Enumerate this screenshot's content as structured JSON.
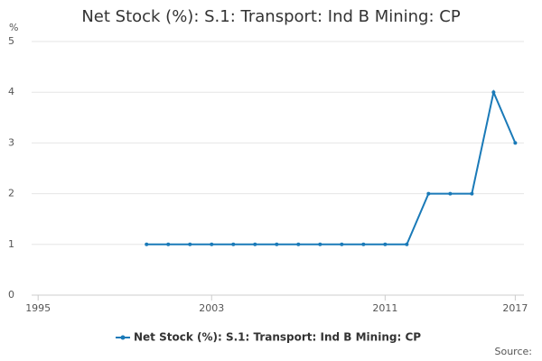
{
  "chart_data": {
    "type": "line",
    "title": "Net Stock (%): S.1: Transport: Ind B Mining: CP",
    "y_unit": "%",
    "source": "Source:",
    "x": [
      2000,
      2001,
      2002,
      2003,
      2004,
      2005,
      2006,
      2007,
      2008,
      2009,
      2010,
      2011,
      2012,
      2013,
      2014,
      2015,
      2016,
      2017
    ],
    "series": [
      {
        "name": "Net Stock (%): S.1: Transport: Ind B Mining: CP",
        "color": "#1a7ab8",
        "values": [
          1,
          1,
          1,
          1,
          1,
          1,
          1,
          1,
          1,
          1,
          1,
          1,
          1,
          2,
          2,
          2,
          4,
          3
        ]
      }
    ],
    "xlim": [
      1994.7,
      2017.4
    ],
    "xticks": [
      1995,
      2003,
      2011,
      2017
    ],
    "ylim": [
      0,
      5
    ],
    "yticks": [
      0,
      1,
      2,
      3,
      4,
      5
    ],
    "grid": true,
    "legend": "bottom"
  }
}
